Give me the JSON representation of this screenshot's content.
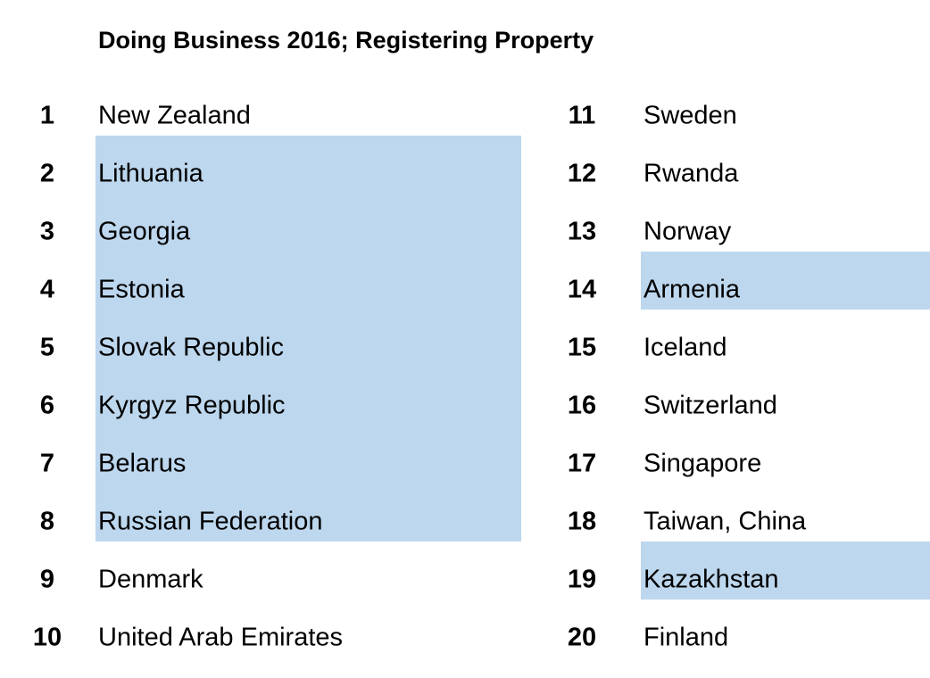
{
  "header": {
    "title": "Doing Business 2016; Registering Property"
  },
  "table": {
    "highlight_color": "#bdd7ee",
    "columns": [
      {
        "rows": [
          {
            "rank": "1",
            "country": "New Zealand",
            "highlighted": false
          },
          {
            "rank": "2",
            "country": "Lithuania",
            "highlighted": true
          },
          {
            "rank": "3",
            "country": "Georgia",
            "highlighted": true
          },
          {
            "rank": "4",
            "country": "Estonia",
            "highlighted": true
          },
          {
            "rank": "5",
            "country": "Slovak Republic",
            "highlighted": true
          },
          {
            "rank": "6",
            "country": "Kyrgyz Republic",
            "highlighted": true
          },
          {
            "rank": "7",
            "country": "Belarus",
            "highlighted": true
          },
          {
            "rank": "8",
            "country": "Russian Federation",
            "highlighted": true
          },
          {
            "rank": "9",
            "country": "Denmark",
            "highlighted": false
          },
          {
            "rank": "10",
            "country": "United Arab Emirates",
            "highlighted": false
          }
        ]
      },
      {
        "rows": [
          {
            "rank": "11",
            "country": "Sweden",
            "highlighted": false
          },
          {
            "rank": "12",
            "country": "Rwanda",
            "highlighted": false
          },
          {
            "rank": "13",
            "country": "Norway",
            "highlighted": false
          },
          {
            "rank": "14",
            "country": "Armenia",
            "highlighted": true
          },
          {
            "rank": "15",
            "country": "Iceland",
            "highlighted": false
          },
          {
            "rank": "16",
            "country": "Switzerland",
            "highlighted": false
          },
          {
            "rank": "17",
            "country": "Singapore",
            "highlighted": false
          },
          {
            "rank": "18",
            "country": "Taiwan, China",
            "highlighted": false
          },
          {
            "rank": "19",
            "country": "Kazakhstan",
            "highlighted": true
          },
          {
            "rank": "20",
            "country": "Finland",
            "highlighted": false
          }
        ]
      }
    ]
  }
}
